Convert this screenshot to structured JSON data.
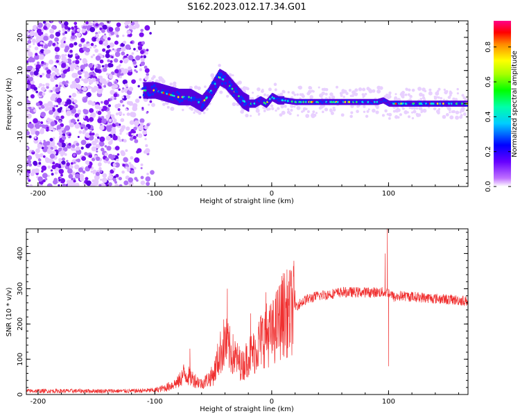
{
  "chart_data": [
    {
      "type": "heatmap",
      "title": "S162.2023.012.17.34.G01",
      "xlabel": "Height of straight line (km)",
      "ylabel": "Frequency (Hz)",
      "xlim": [
        -210,
        168
      ],
      "ylim": [
        -25,
        25
      ],
      "xticks": [
        -200,
        -100,
        0,
        100
      ],
      "yticks": [
        -20,
        -10,
        0,
        10,
        20
      ],
      "ridge": {
        "x": [
          -110,
          -100,
          -90,
          -80,
          -70,
          -60,
          -55,
          -50,
          -45,
          -40,
          -35,
          -30,
          -25,
          -20,
          -15,
          -10,
          -5,
          0,
          5,
          10,
          20,
          40,
          60,
          80,
          90,
          95,
          100,
          120,
          140,
          168
        ],
        "frequency": [
          4,
          4,
          3,
          2,
          2,
          0,
          2,
          5,
          8,
          7,
          5,
          3,
          1,
          0,
          0,
          1,
          0,
          2,
          1,
          1,
          0.5,
          0.5,
          0.5,
          0.5,
          0.5,
          1,
          0,
          0,
          0,
          0
        ]
      },
      "colorbar": {
        "label": "Normalized spectral amplitude",
        "range": [
          0.0,
          0.95
        ],
        "ticks": [
          0.0,
          0.2,
          0.4,
          0.6,
          0.8
        ]
      }
    },
    {
      "type": "line",
      "xlabel": "Height of straight line (km)",
      "ylabel": "SNR (10 * v/v)",
      "xlim": [
        -210,
        168
      ],
      "ylim": [
        0,
        470
      ],
      "xticks": [
        -200,
        -100,
        0,
        100
      ],
      "yticks": [
        0,
        100,
        200,
        300,
        400
      ],
      "color": "#f03030",
      "envelope": {
        "x": [
          -210,
          -120,
          -100,
          -90,
          -80,
          -75,
          -70,
          -60,
          -50,
          -45,
          -40,
          -35,
          -30,
          -25,
          -20,
          -15,
          -10,
          -5,
          0,
          5,
          10,
          15,
          20,
          30,
          40,
          60,
          80,
          90,
          95,
          100,
          105,
          110,
          130,
          150,
          168
        ],
        "snr": [
          10,
          10,
          12,
          20,
          35,
          60,
          50,
          30,
          55,
          110,
          150,
          120,
          100,
          80,
          110,
          120,
          150,
          170,
          170,
          200,
          230,
          230,
          250,
          270,
          280,
          290,
          290,
          290,
          290,
          290,
          275,
          280,
          275,
          270,
          265
        ]
      },
      "spikes": [
        {
          "x": -70,
          "snr": 130
        },
        {
          "x": -38,
          "snr": 300
        },
        {
          "x": -18,
          "snr": 230
        },
        {
          "x": -5,
          "snr": 290
        },
        {
          "x": 10,
          "snr": 330
        },
        {
          "x": 97,
          "snr": 400
        },
        {
          "x": 99,
          "snr": 470
        },
        {
          "x": 100,
          "snr": 80
        }
      ]
    }
  ]
}
